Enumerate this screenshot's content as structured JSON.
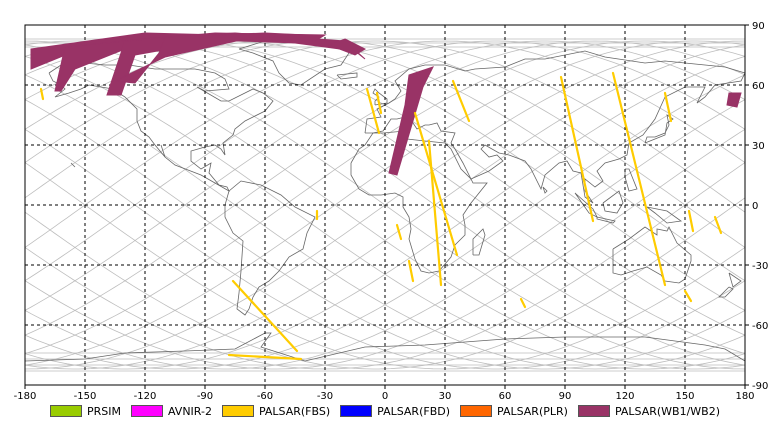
{
  "colors": {
    "grid": "#000000",
    "orbit": "#bdbdbd",
    "coast": "#666666",
    "fbs": "#ffcc00",
    "wb": "#993366"
  },
  "axes": {
    "x_ticks": [
      -180,
      -150,
      -120,
      -90,
      -60,
      -30,
      0,
      30,
      60,
      90,
      120,
      150,
      180
    ],
    "y_ticks": [
      90,
      60,
      30,
      0,
      -30,
      -60,
      -90
    ],
    "x_tick_labels": [
      "-180",
      "-150",
      "-120",
      "-90",
      "-60",
      "-30",
      "0",
      "30",
      "60",
      "90",
      "120",
      "150",
      "180"
    ],
    "y_tick_labels": [
      "90",
      "60",
      "30",
      "0",
      "-30",
      "-60",
      "-90"
    ]
  },
  "legend": [
    {
      "label": "PRSIM",
      "color": "#99cc00"
    },
    {
      "label": "AVNIR-2",
      "color": "#ff00ff"
    },
    {
      "label": "PALSAR(FBS)",
      "color": "#ffcc00"
    },
    {
      "label": "PALSAR(FBD)",
      "color": "#0000ff"
    },
    {
      "label": "PALSAR(PLR)",
      "color": "#ff6600"
    },
    {
      "label": "PALSAR(WB1/WB2)",
      "color": "#993366"
    }
  ],
  "fbs_segments": [
    [
      [
        -172,
        58
      ],
      [
        -171,
        53
      ]
    ],
    [
      [
        -9,
        58
      ],
      [
        -3,
        36
      ]
    ],
    [
      [
        -4,
        56
      ],
      [
        -2,
        46
      ]
    ],
    [
      [
        15,
        46
      ],
      [
        36,
        -25
      ]
    ],
    [
      [
        22,
        32
      ],
      [
        28,
        -40
      ]
    ],
    [
      [
        34,
        62
      ],
      [
        42,
        42
      ]
    ],
    [
      [
        88,
        64
      ],
      [
        104,
        -8
      ]
    ],
    [
      [
        114,
        66
      ],
      [
        140,
        -40
      ]
    ],
    [
      [
        140,
        56
      ],
      [
        143,
        42
      ]
    ],
    [
      [
        152,
        -3
      ],
      [
        154,
        -13
      ]
    ],
    [
      [
        165,
        -6
      ],
      [
        168,
        -14
      ]
    ],
    [
      [
        150,
        -43
      ],
      [
        153,
        -48
      ]
    ],
    [
      [
        -76,
        -38
      ],
      [
        -44,
        -73
      ]
    ],
    [
      [
        -78,
        -75
      ],
      [
        -42,
        -77
      ]
    ],
    [
      [
        -34,
        -3
      ],
      [
        -34,
        -7
      ]
    ],
    [
      [
        6,
        -10
      ],
      [
        8,
        -17
      ]
    ],
    [
      [
        12,
        -28
      ],
      [
        14,
        -38
      ]
    ],
    [
      [
        68,
        -47
      ],
      [
        70,
        -51
      ]
    ]
  ],
  "wb_swaths": [
    [
      [
        -177,
        78
      ],
      [
        -120,
        86
      ],
      [
        -45,
        84
      ],
      [
        -44,
        81
      ],
      [
        -100,
        83
      ],
      [
        -150,
        79
      ],
      [
        -177,
        68
      ]
    ],
    [
      [
        -160,
        79
      ],
      [
        -110,
        84
      ],
      [
        -75,
        86
      ],
      [
        -20,
        82
      ],
      [
        -10,
        73
      ],
      [
        -15,
        77
      ],
      [
        -60,
        83
      ],
      [
        -120,
        82
      ],
      [
        -155,
        68
      ],
      [
        -162,
        57
      ],
      [
        -165,
        57
      ]
    ],
    [
      [
        -130,
        82
      ],
      [
        -85,
        86
      ],
      [
        -30,
        85
      ],
      [
        -35,
        82
      ],
      [
        -80,
        83
      ],
      [
        -125,
        75
      ],
      [
        -132,
        55
      ],
      [
        -139,
        55
      ]
    ],
    [
      [
        -110,
        84
      ],
      [
        -60,
        86
      ],
      [
        -40,
        85
      ],
      [
        -70,
        83
      ],
      [
        -110,
        74
      ],
      [
        -135,
        62
      ],
      [
        -125,
        61
      ],
      [
        -113,
        76
      ]
    ],
    [
      [
        -20,
        83
      ],
      [
        -10,
        78
      ],
      [
        -15,
        75
      ],
      [
        -28,
        80
      ]
    ],
    [
      [
        12,
        65
      ],
      [
        24,
        69
      ],
      [
        19,
        59
      ],
      [
        6,
        15
      ],
      [
        2,
        16
      ],
      [
        10,
        50
      ]
    ],
    [
      [
        172,
        56
      ],
      [
        178,
        56
      ],
      [
        176,
        49
      ],
      [
        171,
        50
      ]
    ]
  ],
  "orbit_offsets": [
    -150,
    -125,
    -100,
    -75,
    -50,
    -25,
    0,
    25,
    50,
    75,
    100,
    125,
    150,
    175
  ]
}
